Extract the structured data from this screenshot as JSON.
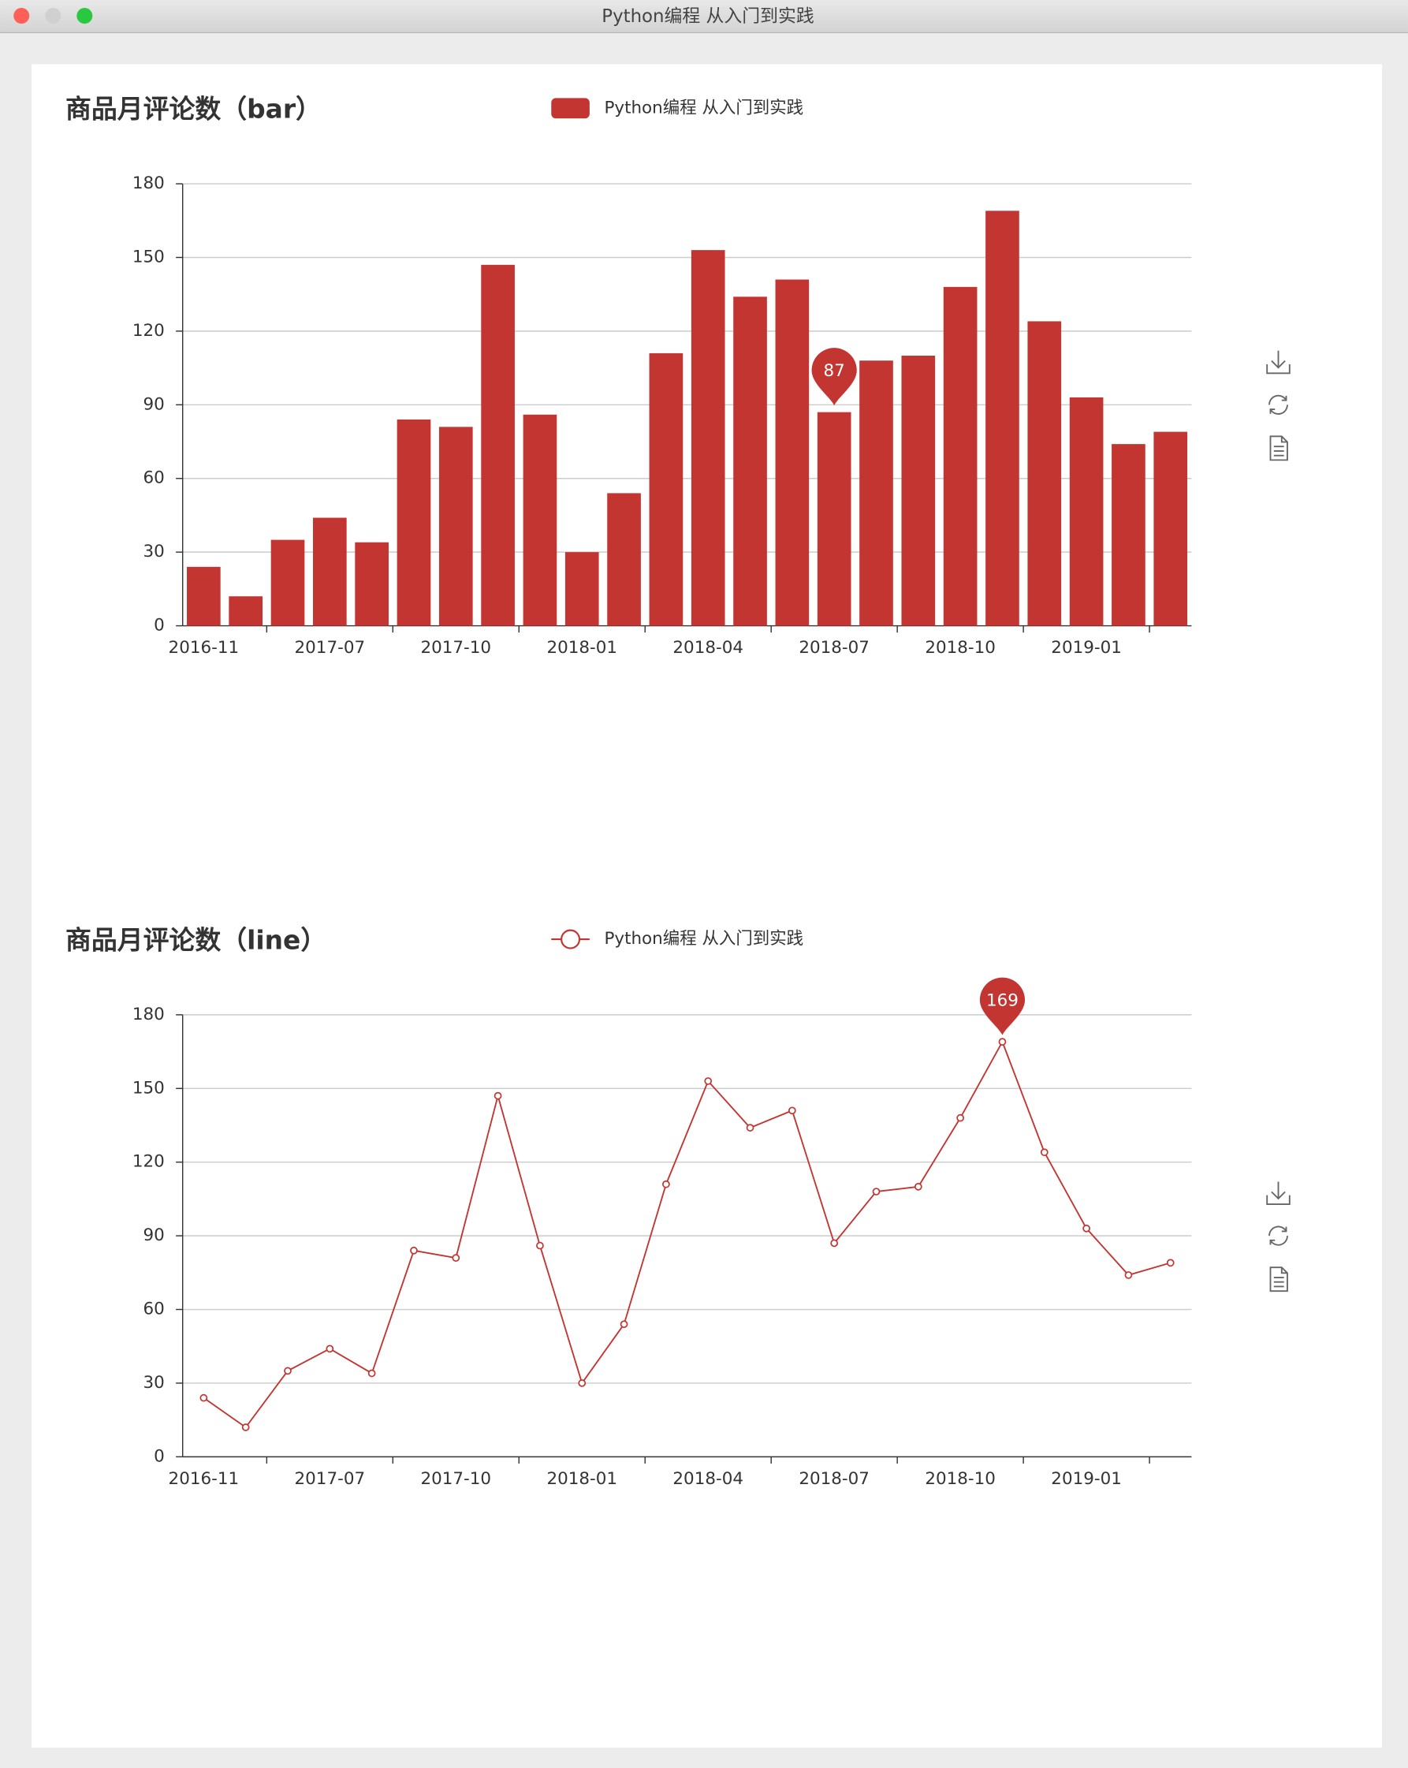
{
  "window": {
    "title": "Python编程 从入门到实践"
  },
  "chart_data": [
    {
      "type": "bar",
      "title": "商品月评论数（bar）",
      "categories": [
        "2016-11",
        null,
        null,
        "2017-07",
        null,
        null,
        "2017-10",
        null,
        null,
        "2018-01",
        null,
        null,
        "2018-04",
        null,
        null,
        "2018-07",
        null,
        null,
        "2018-10",
        null,
        null,
        "2019-01",
        null,
        null
      ],
      "series": [
        {
          "name": "Python编程 从入门到实践",
          "color": "#c23531",
          "values": [
            24,
            12,
            35,
            44,
            34,
            84,
            81,
            147,
            86,
            30,
            54,
            111,
            153,
            134,
            141,
            87,
            108,
            110,
            138,
            169,
            124,
            93,
            74,
            79
          ]
        }
      ],
      "ylim": [
        0,
        180
      ],
      "yticks": [
        0,
        30,
        60,
        90,
        120,
        150,
        180
      ],
      "grid": true,
      "mark_point": {
        "category_index": 15,
        "value": 87
      }
    },
    {
      "type": "line",
      "title": "商品月评论数（line）",
      "categories": [
        "2016-11",
        null,
        null,
        "2017-07",
        null,
        null,
        "2017-10",
        null,
        null,
        "2018-01",
        null,
        null,
        "2018-04",
        null,
        null,
        "2018-07",
        null,
        null,
        "2018-10",
        null,
        null,
        "2019-01",
        null,
        null
      ],
      "series": [
        {
          "name": "Python编程 从入门到实践",
          "color": "#c23531",
          "values": [
            24,
            12,
            35,
            44,
            34,
            84,
            81,
            147,
            86,
            30,
            54,
            111,
            153,
            134,
            141,
            87,
            108,
            110,
            138,
            169,
            124,
            93,
            74,
            79
          ]
        }
      ],
      "ylim": [
        0,
        180
      ],
      "yticks": [
        0,
        30,
        60,
        90,
        120,
        150,
        180
      ],
      "grid": true,
      "mark_point": {
        "category_index": 19,
        "value": 169
      }
    }
  ]
}
